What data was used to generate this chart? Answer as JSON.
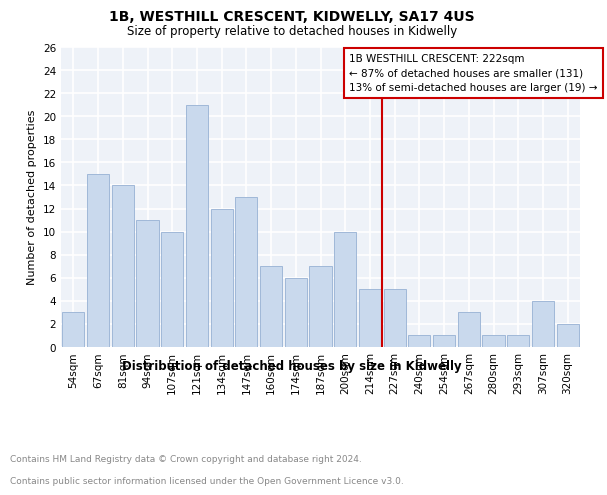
{
  "title": "1B, WESTHILL CRESCENT, KIDWELLY, SA17 4US",
  "subtitle": "Size of property relative to detached houses in Kidwelly",
  "xlabel": "Distribution of detached houses by size in Kidwelly",
  "ylabel": "Number of detached properties",
  "categories": [
    "54sqm",
    "67sqm",
    "81sqm",
    "94sqm",
    "107sqm",
    "121sqm",
    "134sqm",
    "147sqm",
    "160sqm",
    "174sqm",
    "187sqm",
    "200sqm",
    "214sqm",
    "227sqm",
    "240sqm",
    "254sqm",
    "267sqm",
    "280sqm",
    "293sqm",
    "307sqm",
    "320sqm"
  ],
  "values": [
    3,
    15,
    14,
    11,
    10,
    21,
    12,
    13,
    7,
    6,
    7,
    10,
    5,
    5,
    1,
    1,
    3,
    1,
    1,
    4,
    2
  ],
  "bar_color": "#c9d9ed",
  "bar_edge_color": "#a0b8d8",
  "reference_line_label": "1B WESTHILL CRESCENT: 222sqm",
  "annotation_line1": "← 87% of detached houses are smaller (131)",
  "annotation_line2": "13% of semi-detached houses are larger (19) →",
  "annotation_box_color": "#ffffff",
  "annotation_box_edge": "#cc0000",
  "reference_line_color": "#cc0000",
  "ylim": [
    0,
    26
  ],
  "yticks": [
    0,
    2,
    4,
    6,
    8,
    10,
    12,
    14,
    16,
    18,
    20,
    22,
    24,
    26
  ],
  "footer_line1": "Contains HM Land Registry data © Crown copyright and database right 2024.",
  "footer_line2": "Contains public sector information licensed under the Open Government Licence v3.0.",
  "background_color": "#eef2f8",
  "grid_color": "#ffffff",
  "title_fontsize": 10,
  "subtitle_fontsize": 8.5,
  "ylabel_fontsize": 8,
  "xlabel_fontsize": 8.5,
  "tick_fontsize": 7.5,
  "footer_fontsize": 6.5
}
